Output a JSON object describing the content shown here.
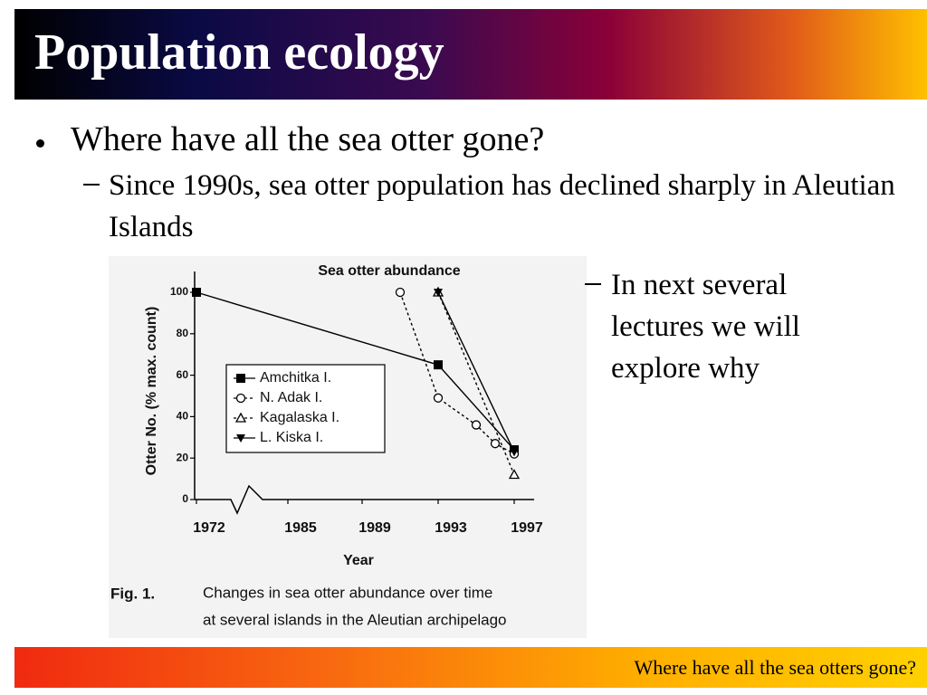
{
  "slide": {
    "title": "Population ecology",
    "bullet": "Where have all the sea otter gone?",
    "sub_bullet": "Since 1990s, sea otter population has declined sharply in Aleutian Islands",
    "side_bullet": "In next several lectures we will explore why",
    "footer": "Where have all the sea otters gone?"
  },
  "chart_data": {
    "type": "line",
    "title": "Sea otter abundance",
    "x_label": "Year",
    "y_label": "Otter No. (% max. count)",
    "caption_label": "Fig. 1.",
    "caption": [
      "Changes in sea otter abundance over time",
      "at several islands in the Aleutian archipelago"
    ],
    "xlim": [
      1972,
      1997
    ],
    "xticks": [
      1972,
      1985,
      1989,
      1993,
      1997
    ],
    "axis_break": true,
    "ylim": [
      0,
      100
    ],
    "yticks": [
      0,
      20,
      40,
      60,
      80,
      100
    ],
    "legend": "center-left",
    "series": [
      {
        "name": "Amchitka I.",
        "color": "#000000",
        "marker": "square",
        "dash": "solid",
        "x": [
          1972,
          1993,
          1997
        ],
        "values": [
          100,
          65,
          24
        ]
      },
      {
        "name": "N. Adak I.",
        "color": "#000000",
        "marker": "circle",
        "dash": "dotted",
        "x": [
          1991,
          1993,
          1995,
          1996,
          1997
        ],
        "values": [
          100,
          49,
          36,
          27,
          22
        ]
      },
      {
        "name": "Kagalaska I.",
        "color": "#000000",
        "marker": "triangle",
        "dash": "dotted",
        "x": [
          1993,
          1997
        ],
        "values": [
          100,
          12
        ]
      },
      {
        "name": "L. Kiska I.",
        "color": "#000000",
        "marker": "triangle-down",
        "dash": "solid",
        "x": [
          1993,
          1997
        ],
        "values": [
          100,
          23
        ]
      }
    ]
  }
}
